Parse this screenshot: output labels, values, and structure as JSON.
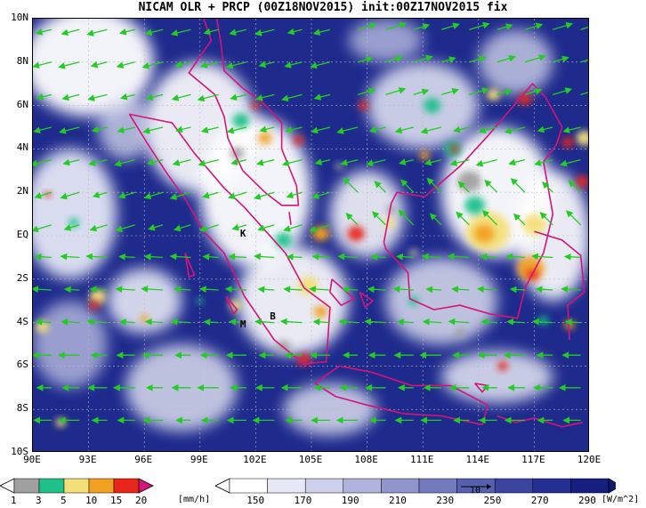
{
  "title": "NICAM OLR + PRCP (00Z18NOV2015) init:00Z17NOV2015 fix",
  "axes": {
    "lat_labels": [
      "10N",
      "8N",
      "6N",
      "4N",
      "2N",
      "EQ",
      "2S",
      "4S",
      "6S",
      "8S",
      "10S"
    ],
    "lon_labels": [
      "90E",
      "93E",
      "96E",
      "99E",
      "102E",
      "105E",
      "108E",
      "111E",
      "114E",
      "117E",
      "120E"
    ]
  },
  "stations": [
    {
      "label": "K",
      "lon": 101.4,
      "lat": 0.0
    },
    {
      "label": "M",
      "lon": 101.4,
      "lat": -4.2
    },
    {
      "label": "B",
      "lon": 103.0,
      "lat": -3.8
    }
  ],
  "colors": {
    "ocean_dark": "#1e2a8c",
    "olr_mid": "#6470c0",
    "coast": "#d4147a",
    "wind": "#22cc22",
    "prcp_gray": "#a0a0a0",
    "prcp_teal": "#1fc08a",
    "prcp_yellow": "#f4e07a",
    "prcp_orange": "#f2a020",
    "prcp_red": "#e8261a"
  },
  "legend_prcp": {
    "labels": [
      "1",
      "3",
      "5",
      "10",
      "15",
      "20"
    ],
    "unit": "[mm/h]",
    "colors": [
      "#ffffff",
      "#a0a0a0",
      "#1fc08a",
      "#f4e07a",
      "#f2a020",
      "#e8261a",
      "#d4147a"
    ]
  },
  "legend_olr": {
    "labels": [
      "150",
      "170",
      "190",
      "210",
      "230",
      "250",
      "270",
      "290"
    ],
    "unit": "[W/m^2]",
    "colors": [
      "#ffffff",
      "#e6e8f4",
      "#cdd0ea",
      "#b0b4dc",
      "#9096cc",
      "#737abe",
      "#5560ae",
      "#3b45a0",
      "#252f92",
      "#161f80"
    ]
  },
  "wind_ref": {
    "label": "10"
  }
}
